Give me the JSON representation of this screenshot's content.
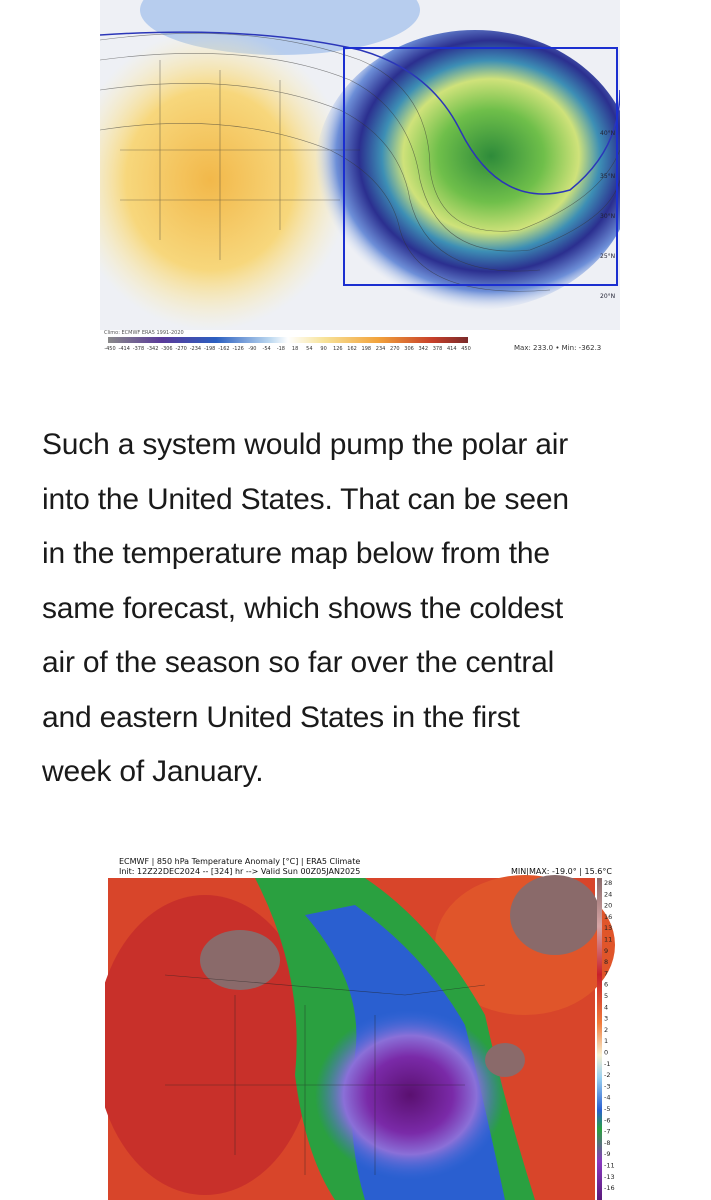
{
  "top_figure": {
    "credit_left": "Climo: ECMWF ERA5 1991-2020",
    "colorbar_labels": [
      "-450",
      "-414",
      "-378",
      "-342",
      "-306",
      "-270",
      "-234",
      "-198",
      "-162",
      "-126",
      "-90",
      "-54",
      "-18",
      "18",
      "54",
      "90",
      "126",
      "162",
      "198",
      "234",
      "270",
      "306",
      "342",
      "378",
      "414",
      "450"
    ],
    "max_min": "Max: 233.0 • Min: -362.3",
    "lat_labels": [
      "40°N",
      "35°N",
      "30°N",
      "25°N",
      "20°N"
    ]
  },
  "article": {
    "paragraph_lines": [
      "Such a system would pump the polar air",
      "into the United States. That can be seen",
      "in the temperature map below from the",
      "same forecast, which shows the coldest",
      "air of the season so far over the central",
      "and eastern United States in the first",
      "week of January."
    ]
  },
  "bottom_figure": {
    "title": "ECMWF | 850 hPa Temperature Anomaly [°C] | ERA5 Climate",
    "init": "Init: 12Z22DEC2024 -- [324] hr --> Valid Sun 00Z05JAN2025",
    "min_max": "MIN|MAX: -19.0° | 15.6°C",
    "colorbar_labels": [
      "28",
      "24",
      "20",
      "16",
      "13",
      "11",
      "9",
      "8",
      "7",
      "6",
      "5",
      "4",
      "3",
      "2",
      "1",
      "0",
      "-1",
      "-2",
      "-3",
      "-4",
      "-5",
      "-6",
      "-7",
      "-8",
      "-9",
      "-11",
      "-13",
      "-16"
    ]
  }
}
